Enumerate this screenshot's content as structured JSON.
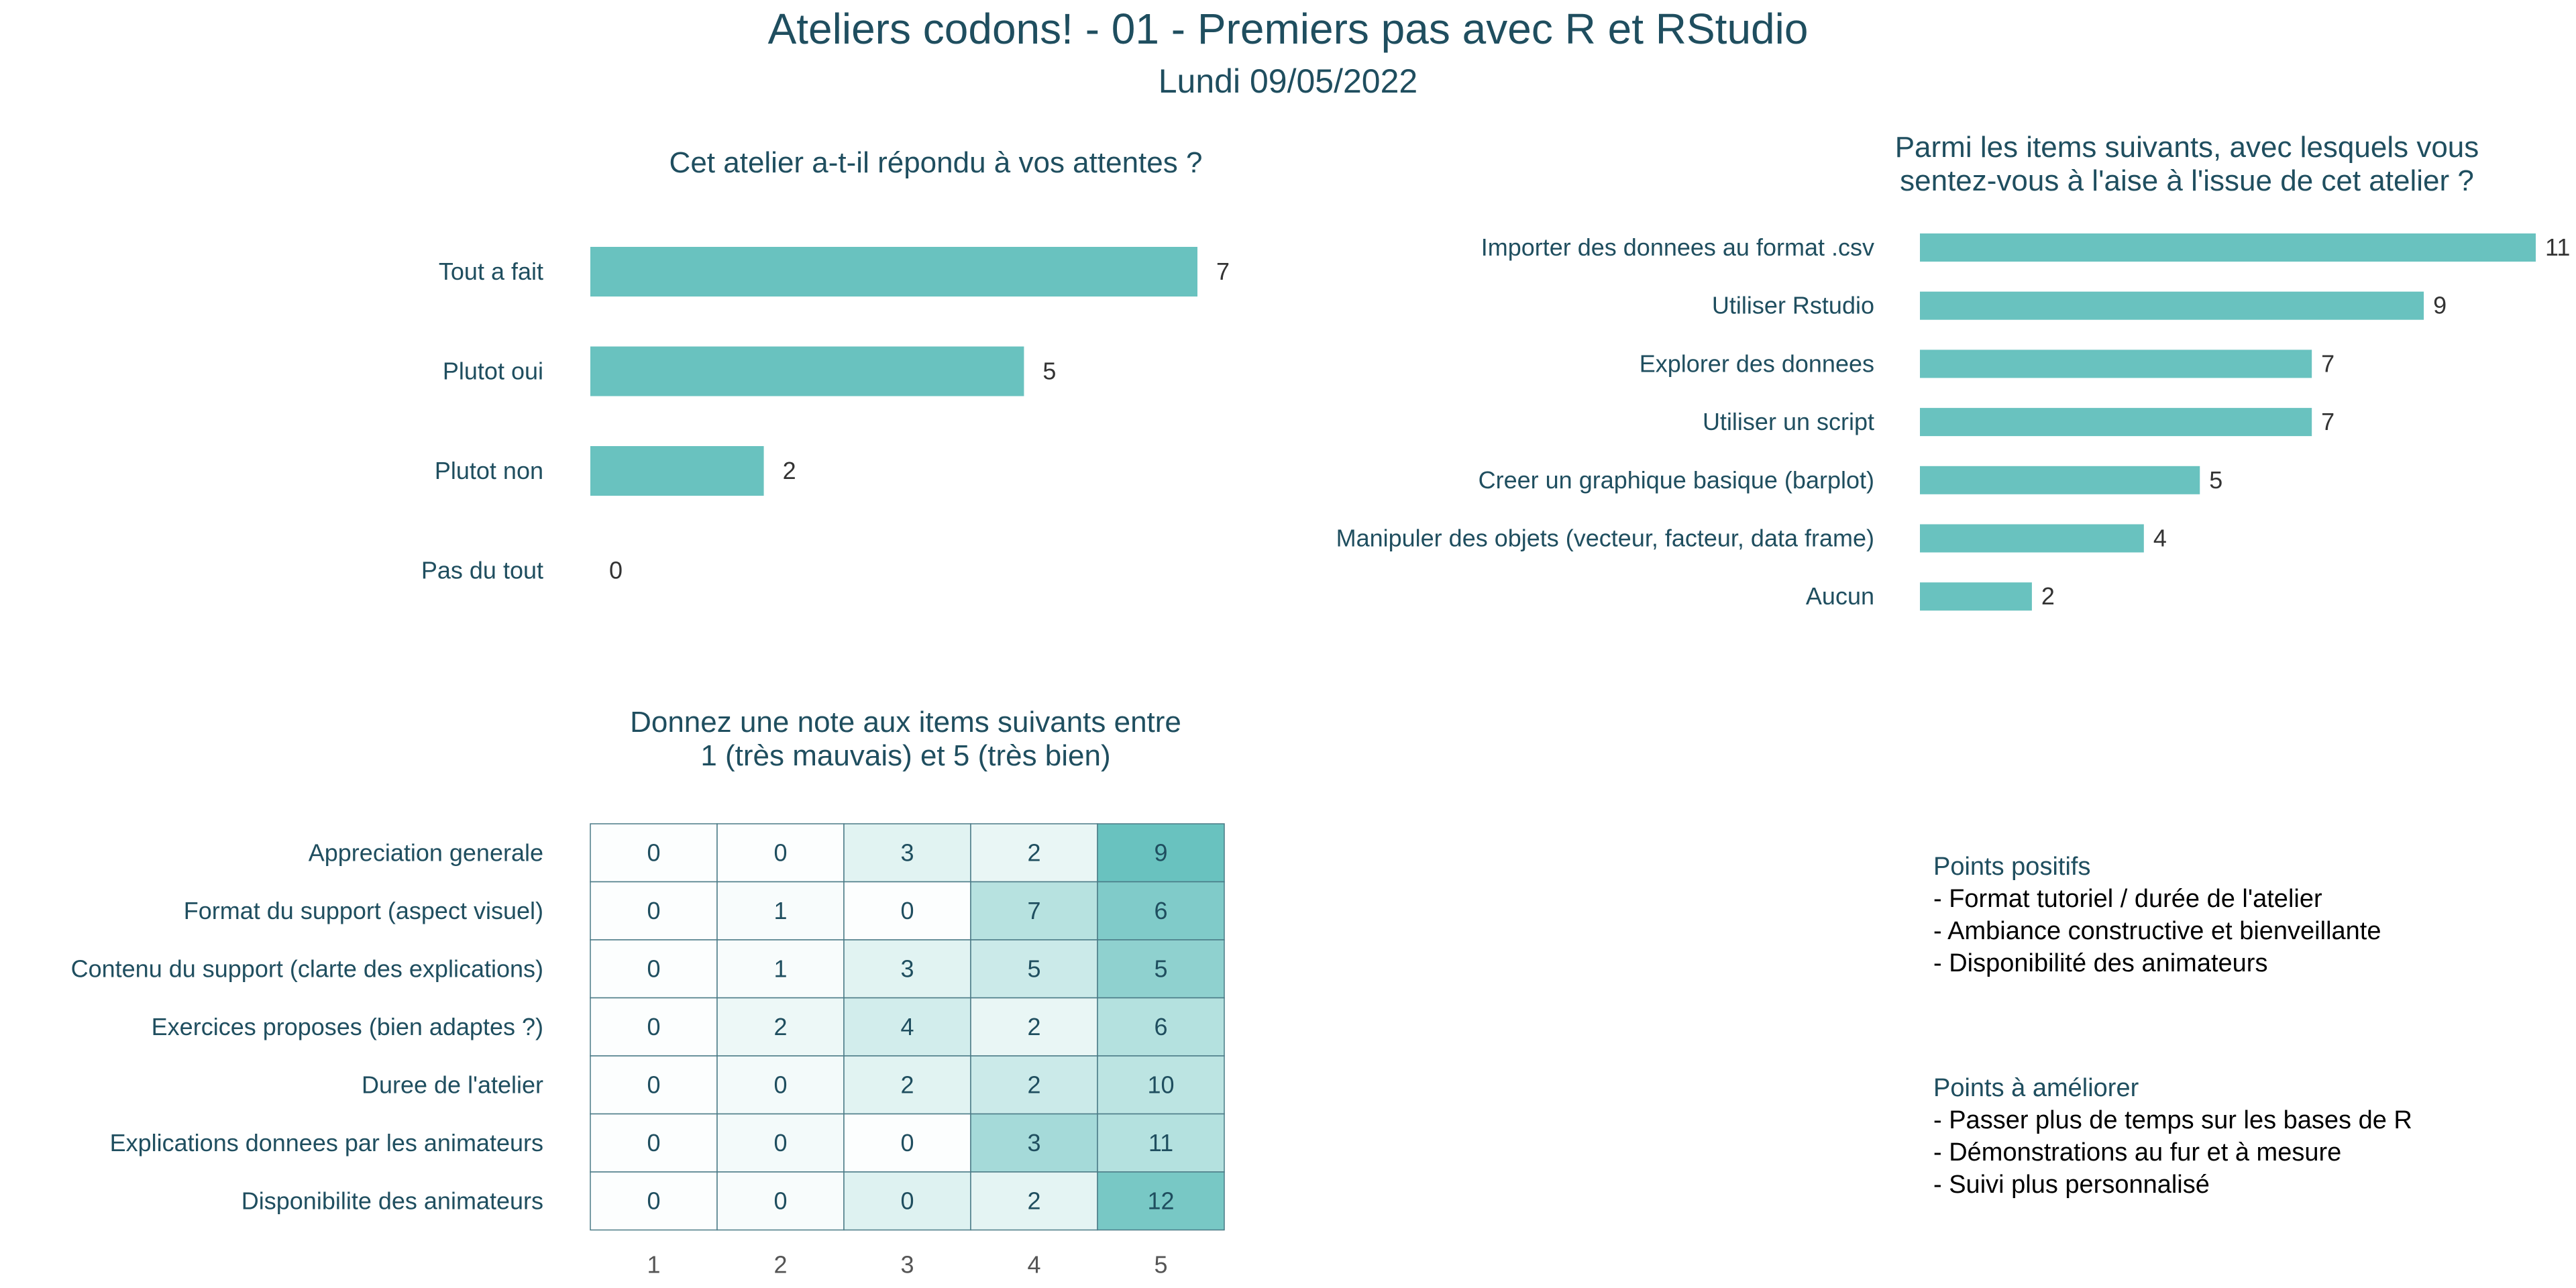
{
  "header": {
    "title": "Ateliers codons! - 01 - Premiers pas avec R et RStudio",
    "subtitle": "Lundi 09/05/2022"
  },
  "colors": {
    "bar": "#69c2bf",
    "text": "#1f4e5f",
    "heat_low": "#ffffff",
    "heat_high": "#69c2bf",
    "grid": "#4a7a86"
  },
  "chart_data": [
    {
      "type": "bar",
      "orientation": "horizontal",
      "title": "Cet atelier a-t-il répondu à vos attentes ?",
      "categories": [
        "Tout a fait",
        "Plutot oui",
        "Plutot non",
        "Pas du tout"
      ],
      "values": [
        7,
        5,
        2,
        0
      ],
      "xlim": [
        0,
        7
      ]
    },
    {
      "type": "bar",
      "orientation": "horizontal",
      "title": "Parmi les items suivants, avec lesquels vous sentez-vous à l'aise à l'issue de cet atelier ?",
      "title_lines": [
        "Parmi les items suivants, avec lesquels vous",
        "sentez-vous à l'aise à l'issue de cet atelier ?"
      ],
      "categories": [
        "Importer des donnees au format .csv",
        "Utiliser Rstudio",
        "Explorer des donnees",
        "Utiliser un script",
        "Creer un graphique basique (barplot)",
        "Manipuler des objets (vecteur, facteur, data frame)",
        "Aucun"
      ],
      "values": [
        11,
        9,
        7,
        7,
        5,
        4,
        2
      ],
      "xlim": [
        0,
        11
      ]
    },
    {
      "type": "heatmap",
      "title": "Donnez une note aux items suivants entre 1 (très mauvais) et 5 (très bien)",
      "title_lines": [
        "Donnez une note aux items suivants entre",
        "1 (très mauvais) et 5 (très bien)"
      ],
      "rows": [
        "Appreciation generale",
        "Format du support (aspect visuel)",
        "Contenu du support (clarte des explications)",
        "Exercices proposes (bien adaptes ?)",
        "Duree de l'atelier",
        "Explications donnees par les animateurs",
        "Disponibilite des animateurs"
      ],
      "columns": [
        "1",
        "2",
        "3",
        "4",
        "5"
      ],
      "values": [
        [
          0,
          0,
          3,
          2,
          9
        ],
        [
          0,
          1,
          0,
          7,
          6
        ],
        [
          0,
          1,
          3,
          5,
          5
        ],
        [
          0,
          2,
          4,
          2,
          6
        ],
        [
          0,
          0,
          2,
          2,
          10
        ],
        [
          0,
          0,
          0,
          3,
          11
        ],
        [
          0,
          0,
          0,
          2,
          12
        ]
      ],
      "shade": [
        [
          0.02,
          0.02,
          0.2,
          0.15,
          1.0
        ],
        [
          0.02,
          0.05,
          0.02,
          0.48,
          0.85
        ],
        [
          0.02,
          0.05,
          0.2,
          0.35,
          0.75
        ],
        [
          0.02,
          0.12,
          0.3,
          0.15,
          0.5
        ],
        [
          0.02,
          0.08,
          0.2,
          0.35,
          0.45
        ],
        [
          0.02,
          0.08,
          0.02,
          0.6,
          0.5
        ],
        [
          0.02,
          0.05,
          0.22,
          0.18,
          0.9
        ]
      ]
    }
  ],
  "comments": {
    "positives": {
      "heading": "Points positifs",
      "items": [
        "- Format tutoriel / durée de l'atelier",
        "- Ambiance constructive et bienveillante",
        "- Disponibilité des animateurs"
      ]
    },
    "improvements": {
      "heading": "Points à améliorer",
      "items": [
        "- Passer plus de temps sur les bases de R",
        "- Démonstrations au fur et à mesure",
        "- Suivi plus personnalisé"
      ]
    }
  }
}
